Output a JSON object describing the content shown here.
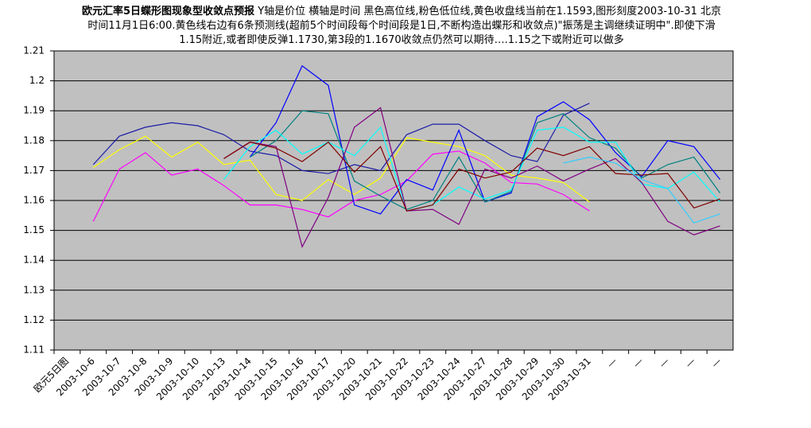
{
  "chart_data": {
    "type": "line",
    "title": "欧元汇率5日蝶形图现象型收敛点预报",
    "subtitle": "Y轴是价位 横轴是时间 黑色高位线,粉色低位线,黄色收盘线当前在1.1593,图形刻度2003-10-31 北京时间11月1日6:00.黄色线右边有6条预测线(超前5个时间段每个时间段是1日,不断构造出蝶形和收敛点)\"振荡是主调继续证明中\".即使下滑1.15附近,或者即使反弹1.1730,第3段的1.1670收敛点仍然可以期待….1.15之下或附近可以做多",
    "categories": [
      "欧元5日图",
      "2003-10-6",
      "2003-10-7",
      "2003-10-8",
      "2003-10-9",
      "2003-10-10",
      "2003-10-13",
      "2003-10-14",
      "2003-10-15",
      "2003-10-16",
      "2003-10-17",
      "2003-10-20",
      "2003-10-21",
      "2003-10-22",
      "2003-10-23",
      "2003-10-24",
      "2003-10-27",
      "2003-10-28",
      "2003-10-29",
      "2003-10-30",
      "2003-10-31",
      "—",
      "—",
      "—",
      "—",
      "—"
    ],
    "series": [
      {
        "color": "#1c1ca8",
        "values": [
          null,
          1.172,
          1.1815,
          1.1845,
          1.186,
          1.185,
          1.182,
          1.1765,
          1.175,
          1.17,
          1.169,
          1.172,
          1.17,
          1.182,
          1.1855,
          1.1855,
          1.18,
          1.175,
          1.173,
          1.1885,
          1.1925,
          null,
          null,
          null,
          null,
          null
        ]
      },
      {
        "color": "#ffff00",
        "values": [
          null,
          1.171,
          1.177,
          1.1815,
          1.1745,
          1.1795,
          1.172,
          1.1735,
          1.162,
          1.16,
          1.167,
          1.162,
          1.1675,
          1.181,
          1.1795,
          1.178,
          1.175,
          1.1685,
          1.1675,
          1.166,
          1.1595,
          null,
          null,
          null,
          null,
          null
        ]
      },
      {
        "color": "#ff00ff",
        "values": [
          null,
          1.153,
          1.1705,
          1.176,
          1.1685,
          1.1705,
          1.165,
          1.1585,
          1.1585,
          1.157,
          1.1545,
          1.16,
          1.162,
          1.1665,
          1.1755,
          1.1765,
          1.1725,
          1.166,
          1.1655,
          1.162,
          1.1565,
          null,
          null,
          null,
          null,
          null
        ]
      },
      {
        "color": "#0000ff",
        "values": [
          null,
          null,
          null,
          null,
          null,
          null,
          null,
          1.1745,
          1.186,
          1.205,
          1.1985,
          1.1585,
          1.1555,
          1.167,
          1.1635,
          1.1835,
          1.1595,
          1.1625,
          1.188,
          1.193,
          1.187,
          1.176,
          1.168,
          1.18,
          1.178,
          1.167
        ]
      },
      {
        "color": "#008080",
        "values": [
          null,
          null,
          null,
          null,
          null,
          null,
          null,
          1.1745,
          1.18,
          1.19,
          1.189,
          1.1665,
          1.1615,
          1.157,
          1.16,
          1.1745,
          1.1595,
          1.163,
          1.186,
          1.189,
          1.181,
          1.1775,
          1.1675,
          1.172,
          1.1745,
          1.1625
        ]
      },
      {
        "color": "#00ffff",
        "values": [
          null,
          null,
          null,
          null,
          null,
          null,
          1.167,
          1.178,
          1.1835,
          1.1755,
          1.1795,
          1.175,
          1.1845,
          1.1565,
          1.1585,
          1.1645,
          1.1605,
          1.1635,
          1.1835,
          1.1845,
          1.1795,
          1.1795,
          1.1655,
          1.164,
          1.1695,
          1.1595
        ]
      },
      {
        "color": "#800080",
        "values": [
          null,
          null,
          null,
          null,
          null,
          null,
          1.174,
          1.1795,
          1.178,
          1.1445,
          1.161,
          1.1845,
          1.191,
          1.1565,
          1.157,
          1.152,
          1.1705,
          1.1675,
          1.1715,
          1.1665,
          1.1705,
          1.174,
          1.166,
          1.153,
          1.1485,
          1.1515
        ]
      },
      {
        "color": "#800000",
        "values": [
          null,
          null,
          null,
          null,
          null,
          null,
          1.174,
          1.1795,
          1.1775,
          1.173,
          1.1795,
          1.1695,
          1.178,
          1.1565,
          1.1585,
          1.1705,
          1.1675,
          1.1695,
          1.1775,
          1.175,
          1.178,
          1.169,
          1.1685,
          1.169,
          1.1575,
          1.1605
        ]
      },
      {
        "color": "#33ccff",
        "values": [
          null,
          null,
          null,
          null,
          null,
          null,
          null,
          null,
          null,
          null,
          null,
          null,
          null,
          null,
          null,
          null,
          null,
          null,
          null,
          1.1725,
          1.1745,
          1.1725,
          1.167,
          1.164,
          1.1525,
          1.1555
        ]
      }
    ],
    "ylim": [
      1.11,
      1.21
    ],
    "yticks": [
      1.11,
      1.12,
      1.13,
      1.14,
      1.15,
      1.16,
      1.17,
      1.18,
      1.19,
      1.2,
      1.21
    ],
    "grid": true,
    "background": "#c0c0c0"
  }
}
